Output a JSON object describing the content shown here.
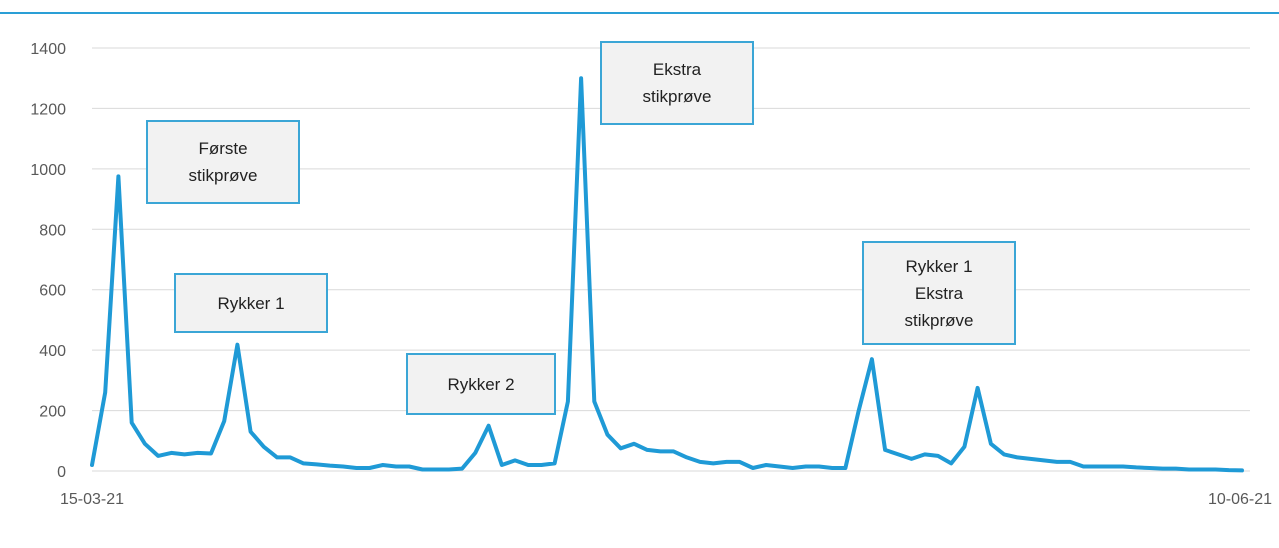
{
  "colors": {
    "series": "#1f9ad6",
    "grid": "#d9d9d9",
    "top_rule": "#2a9fd6",
    "box_border": "#3ba6d6",
    "box_fill": "#f2f2f2"
  },
  "chart_data": {
    "type": "line",
    "title": "",
    "xlabel": "",
    "ylabel": "",
    "ylim": [
      0,
      1400
    ],
    "yticks": [
      0,
      200,
      400,
      600,
      800,
      1000,
      1200,
      1400
    ],
    "xlim": [
      "15-03-21",
      "10-06-21"
    ],
    "xtick_labels": [
      "15-03-21",
      "10-06-21"
    ],
    "grid": true,
    "legend": "none",
    "series": [
      {
        "x": [
          "15-03-21",
          "16-03-21",
          "17-03-21",
          "18-03-21",
          "19-03-21",
          "20-03-21",
          "21-03-21",
          "22-03-21",
          "23-03-21",
          "24-03-21",
          "25-03-21",
          "26-03-21",
          "27-03-21",
          "28-03-21",
          "29-03-21",
          "30-03-21",
          "31-03-21",
          "01-04-21",
          "02-04-21",
          "03-04-21",
          "04-04-21",
          "05-04-21",
          "06-04-21",
          "07-04-21",
          "08-04-21",
          "09-04-21",
          "10-04-21",
          "11-04-21",
          "12-04-21",
          "13-04-21",
          "14-04-21",
          "15-04-21",
          "16-04-21",
          "17-04-21",
          "18-04-21",
          "19-04-21",
          "20-04-21",
          "21-04-21",
          "22-04-21",
          "23-04-21",
          "24-04-21",
          "25-04-21",
          "26-04-21",
          "27-04-21",
          "28-04-21",
          "29-04-21",
          "30-04-21",
          "01-05-21",
          "02-05-21",
          "03-05-21",
          "04-05-21",
          "05-05-21",
          "06-05-21",
          "07-05-21",
          "08-05-21",
          "09-05-21",
          "10-05-21",
          "11-05-21",
          "12-05-21",
          "13-05-21",
          "14-05-21",
          "15-05-21",
          "16-05-21",
          "17-05-21",
          "18-05-21",
          "19-05-21",
          "20-05-21",
          "21-05-21",
          "22-05-21",
          "23-05-21",
          "24-05-21",
          "25-05-21",
          "26-05-21",
          "27-05-21",
          "28-05-21",
          "29-05-21",
          "30-05-21",
          "31-05-21",
          "01-06-21",
          "02-06-21",
          "03-06-21",
          "04-06-21",
          "05-06-21",
          "06-06-21",
          "07-06-21",
          "08-06-21",
          "09-06-21",
          "10-06-21"
        ],
        "values": [
          20,
          260,
          975,
          160,
          90,
          50,
          60,
          55,
          60,
          58,
          165,
          418,
          130,
          80,
          45,
          45,
          25,
          22,
          18,
          15,
          10,
          10,
          20,
          15,
          15,
          5,
          5,
          5,
          8,
          60,
          150,
          20,
          35,
          20,
          20,
          25,
          230,
          1300,
          230,
          120,
          75,
          90,
          70,
          65,
          65,
          45,
          30,
          25,
          30,
          30,
          10,
          20,
          15,
          10,
          15,
          15,
          10,
          10,
          200,
          370,
          70,
          55,
          40,
          55,
          50,
          25,
          80,
          275,
          90,
          55,
          45,
          40,
          35,
          30,
          30,
          15,
          15,
          15,
          15,
          12,
          10,
          8,
          8,
          5,
          5,
          5,
          3,
          2
        ]
      }
    ],
    "annotations": [
      {
        "text": "Første\nstikprøve"
      },
      {
        "text": "Rykker 1"
      },
      {
        "text": "Rykker 2"
      },
      {
        "text": "Ekstra\nstikprøve"
      },
      {
        "text": "Rykker 1\nEkstra\nstikprøve"
      }
    ]
  }
}
